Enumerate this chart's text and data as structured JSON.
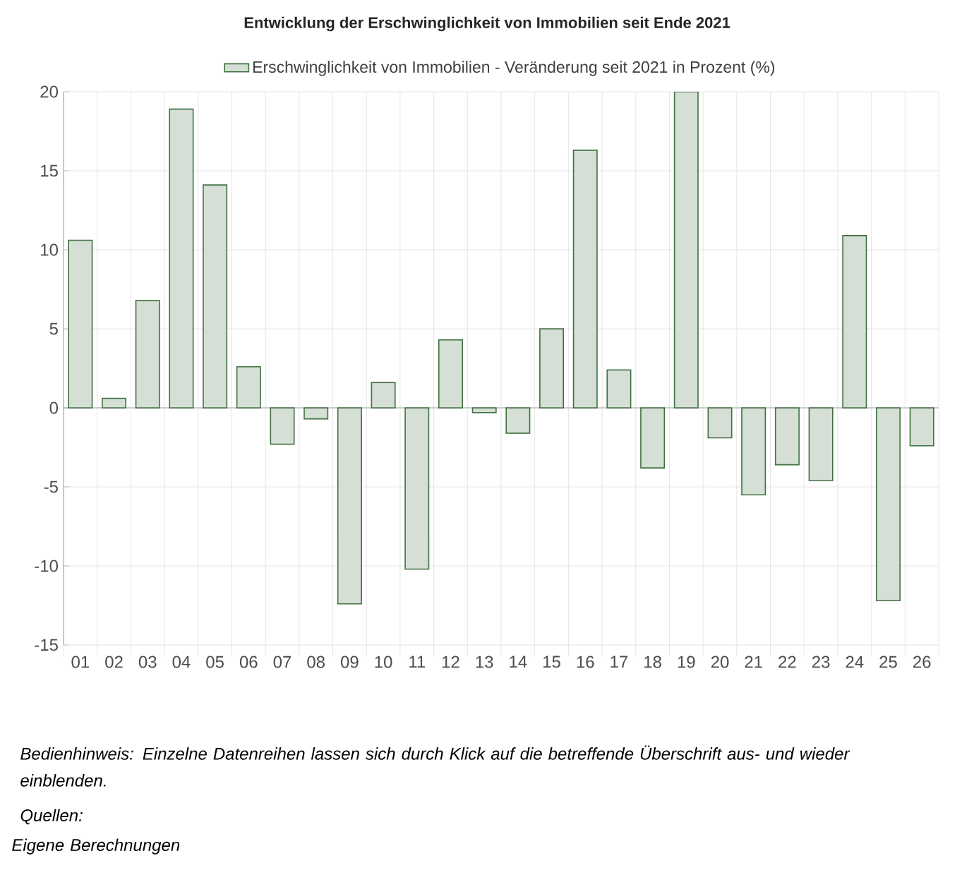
{
  "chart_data": {
    "type": "bar",
    "title": "Entwicklung der Erschwinglichkeit von Immobilien seit Ende 2021",
    "categories": [
      "01",
      "02",
      "03",
      "04",
      "05",
      "06",
      "07",
      "08",
      "09",
      "10",
      "11",
      "12",
      "13",
      "14",
      "15",
      "16",
      "17",
      "18",
      "19",
      "20",
      "21",
      "22",
      "23",
      "24",
      "25",
      "26"
    ],
    "series": [
      {
        "name": "Erschwinglichkeit von Immobilien - Veränderung seit 2021 in Prozent (%)",
        "color": "#d5dfd5",
        "values": [
          10.6,
          0.6,
          6.8,
          18.9,
          14.1,
          2.6,
          -2.3,
          -0.7,
          -12.4,
          1.6,
          -10.2,
          4.3,
          -0.3,
          -1.6,
          5.0,
          16.3,
          2.4,
          -3.8,
          20.0,
          -1.9,
          -5.5,
          -3.6,
          -4.6,
          10.9,
          -12.2,
          -2.4
        ]
      }
    ],
    "ylim": [
      -15,
      20
    ],
    "yticks": [
      -15,
      -10,
      -5,
      0,
      5,
      10,
      15,
      20
    ],
    "grid": true,
    "legend": "top",
    "annotations": [
      "Bedienhinweis: Einzelne Datenreihen lassen sich durch Klick auf die betreffende Überschrift aus- und wieder einblenden.",
      "Quellen:",
      "Eigene Berechnungen"
    ]
  }
}
